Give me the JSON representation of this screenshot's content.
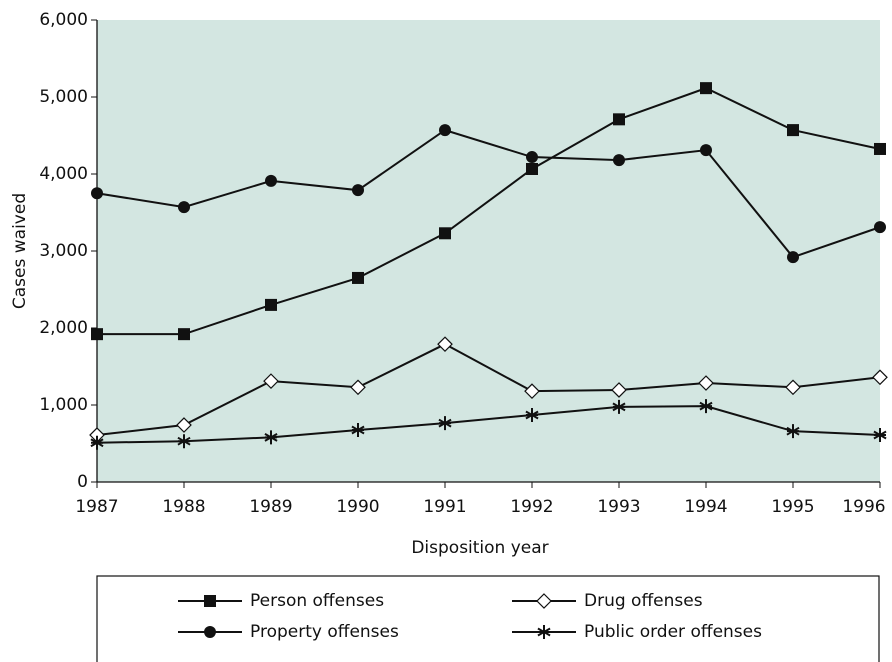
{
  "chart_data": {
    "type": "line",
    "x_label": "Disposition year",
    "y_label": "Cases waived",
    "x": [
      1987,
      1988,
      1989,
      1990,
      1991,
      1992,
      1993,
      1994,
      1995,
      1996
    ],
    "xlim": [
      1987,
      1996
    ],
    "xticks": [
      1987,
      1988,
      1989,
      1990,
      1991,
      1992,
      1993,
      1994,
      1995,
      1996
    ],
    "ylim": [
      0,
      6000
    ],
    "yticks": [
      {
        "value": 0,
        "label": "0"
      },
      {
        "value": 1000,
        "label": "1,000"
      },
      {
        "value": 2000,
        "label": "2,000"
      },
      {
        "value": 3000,
        "label": "3,000"
      },
      {
        "value": 4000,
        "label": "4,000"
      },
      {
        "value": 5000,
        "label": "5,000"
      },
      {
        "value": 6000,
        "label": "6,000"
      }
    ],
    "plot_background": "#d3e6e1",
    "series": [
      {
        "name": "Person offenses",
        "color": "#111111",
        "marker": "square",
        "values": [
          1920,
          1920,
          2300,
          2650,
          3230,
          4065,
          4710,
          5115,
          4570,
          4325
        ]
      },
      {
        "name": "Drug offenses",
        "color": "#111111",
        "marker": "diamond",
        "values": [
          610,
          740,
          1310,
          1230,
          1790,
          1180,
          1195,
          1285,
          1230,
          1360
        ]
      },
      {
        "name": "Property offenses",
        "color": "#111111",
        "marker": "circle",
        "values": [
          3750,
          3570,
          3910,
          3790,
          4570,
          4220,
          4180,
          4310,
          2920,
          3310
        ]
      },
      {
        "name": "Public order offenses",
        "color": "#111111",
        "marker": "asterisk",
        "values": [
          510,
          530,
          580,
          675,
          765,
          870,
          975,
          985,
          660,
          610
        ]
      }
    ]
  }
}
